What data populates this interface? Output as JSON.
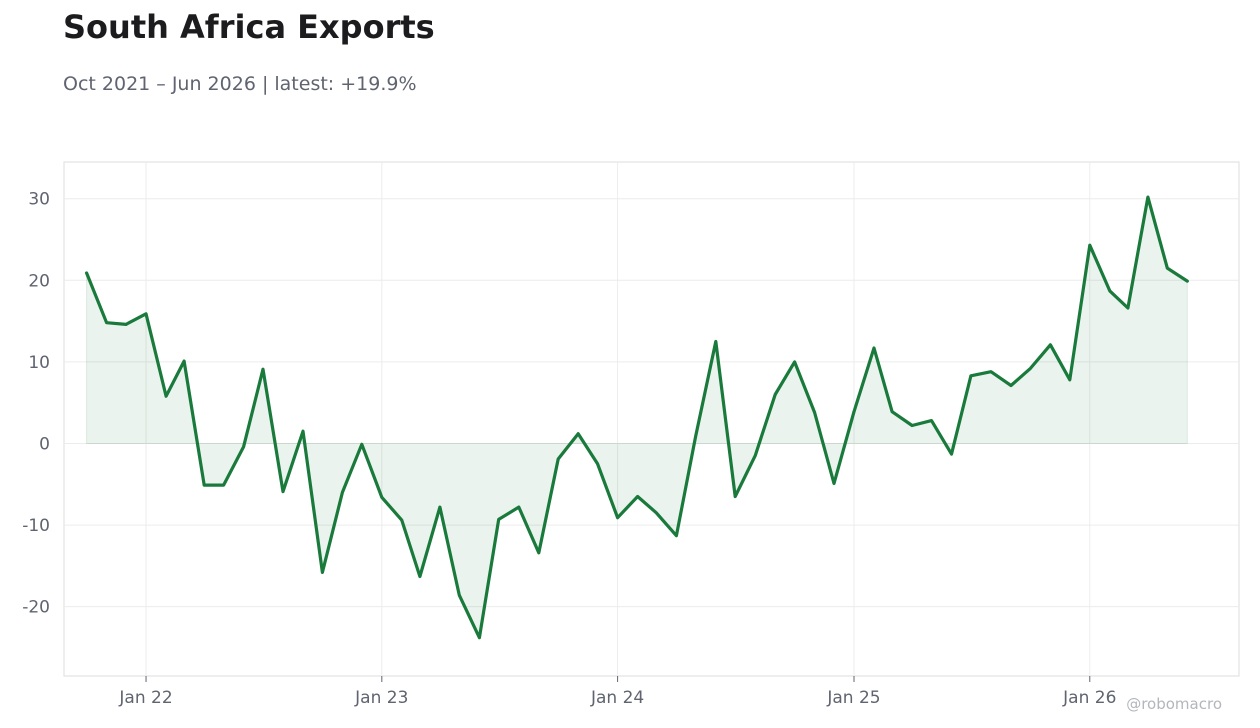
{
  "title": "South Africa Exports",
  "subtitle": "Oct 2021 – Jun 2026 | latest: +19.9%",
  "watermark": "@robomacro",
  "colors": {
    "line": "#1a7a3c",
    "fill": "#1a7a3c",
    "grid": "#ececec",
    "frame": "#dddddd",
    "text": "#5f6470"
  },
  "chart_data": {
    "type": "area",
    "grid": true,
    "legend": "none",
    "ylim": [
      -28.5,
      34.5
    ],
    "xlim": [
      "2021-08-27",
      "2026-08-20"
    ],
    "yticks": [
      30,
      20,
      10,
      0,
      -10,
      -20
    ],
    "ytick_labels": [
      "30",
      "20",
      "10",
      "0",
      "-10",
      "-20"
    ],
    "xticks": [
      "2022-01-01",
      "2023-01-01",
      "2024-01-01",
      "2025-01-01",
      "2026-01-01"
    ],
    "xtick_labels": [
      "Jan 22",
      "Jan 23",
      "Jan 24",
      "Jan 25",
      "Jan 26"
    ],
    "series": [
      {
        "x": [
          "2021-10-01",
          "2021-11-01",
          "2021-12-01",
          "2022-01-01",
          "2022-02-01",
          "2022-03-01",
          "2022-04-01",
          "2022-05-01",
          "2022-06-01",
          "2022-07-01",
          "2022-08-01",
          "2022-09-01",
          "2022-10-01",
          "2022-11-01",
          "2022-12-01",
          "2023-01-01",
          "2023-02-01",
          "2023-03-01",
          "2023-04-01",
          "2023-05-01",
          "2023-06-01",
          "2023-07-01",
          "2023-08-01",
          "2023-09-01",
          "2023-10-01",
          "2023-11-01",
          "2023-12-01",
          "2024-01-01",
          "2024-02-01",
          "2024-03-01",
          "2024-04-01",
          "2024-05-01",
          "2024-06-01",
          "2024-07-01",
          "2024-08-01",
          "2024-09-01",
          "2024-10-01",
          "2024-11-01",
          "2024-12-01",
          "2025-01-01",
          "2025-02-01",
          "2025-03-01",
          "2025-04-01",
          "2025-05-01",
          "2025-06-01",
          "2025-07-01",
          "2025-08-01",
          "2025-09-01",
          "2025-10-01",
          "2025-11-01",
          "2025-12-01",
          "2026-01-01",
          "2026-02-01",
          "2026-03-01",
          "2026-04-01",
          "2026-05-01",
          "2026-06-01"
        ],
        "values": [
          20.9,
          14.8,
          14.6,
          15.9,
          5.8,
          10.1,
          -5.1,
          -5.1,
          -0.4,
          9.1,
          -5.9,
          1.5,
          -15.8,
          -6.0,
          -0.1,
          -6.6,
          -9.4,
          -16.3,
          -7.8,
          -18.6,
          -23.8,
          -9.3,
          -7.8,
          -13.4,
          -1.9,
          1.2,
          -2.5,
          -9.1,
          -6.5,
          -8.5,
          -11.3,
          0.9,
          12.5,
          -6.5,
          -1.5,
          6.0,
          10.0,
          3.8,
          -4.9,
          3.9,
          11.7,
          3.9,
          2.2,
          2.8,
          -1.3,
          8.3,
          8.8,
          7.1,
          9.2,
          12.1,
          7.8,
          24.3,
          18.7,
          16.6,
          30.2,
          21.5,
          19.9
        ]
      }
    ]
  }
}
